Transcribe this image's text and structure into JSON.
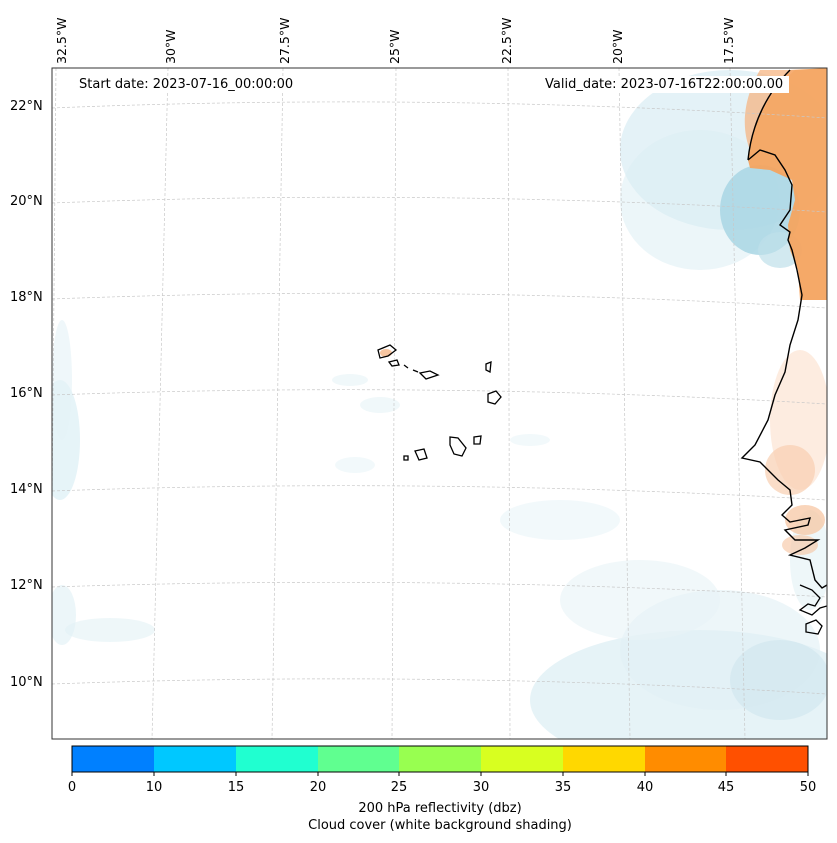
{
  "map": {
    "start_date_text": "Start date: 2023-07-16_00:00:00",
    "valid_date_text": "Valid_date: 2023-07-16T22:00:00.00",
    "longitude_labels": [
      "32.5°W",
      "30°W",
      "27.5°W",
      "25°W",
      "22.5°W",
      "20°W",
      "17.5°W"
    ],
    "latitude_labels": [
      "22°N",
      "20°N",
      "18°N",
      "16°N",
      "14°N",
      "12°N",
      "10°N"
    ],
    "gridlines": "dashed light gray",
    "coastline_color": "#000000",
    "cloud_shading_color": "#add8e6",
    "dry_land_color": "#f4a460"
  },
  "colorbar": {
    "ticks": [
      "0",
      "10",
      "15",
      "20",
      "25",
      "30",
      "35",
      "40",
      "45",
      "50"
    ],
    "colors": [
      "#0080ff",
      "#00c8ff",
      "#20ffd0",
      "#60ff90",
      "#98ff50",
      "#d8ff20",
      "#ffd800",
      "#ff8c00",
      "#ff5000"
    ],
    "label": "200 hPa reflectivity (dbz)",
    "sublabel": "Cloud cover (white background shading)"
  }
}
